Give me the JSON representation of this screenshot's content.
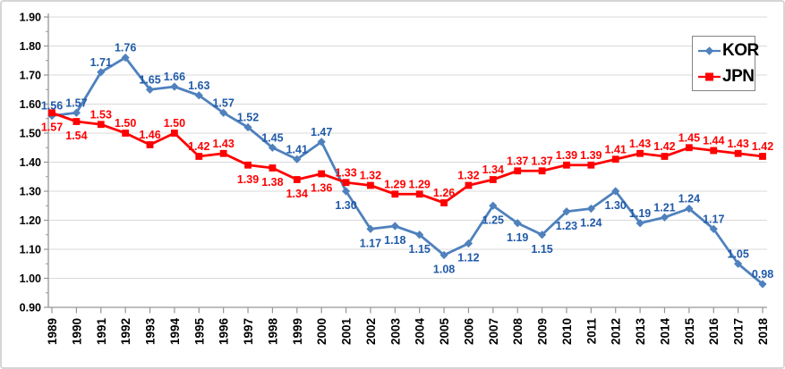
{
  "chart_data": {
    "type": "line",
    "title": "",
    "xlabel": "",
    "ylabel": "",
    "categories": [
      "1989",
      "1990",
      "1991",
      "1992",
      "1993",
      "1994",
      "1995",
      "1996",
      "1997",
      "1998",
      "1999",
      "2000",
      "2001",
      "2002",
      "2003",
      "2004",
      "2005",
      "2006",
      "2007",
      "2008",
      "2009",
      "2010",
      "2011",
      "2012",
      "2013",
      "2014",
      "2015",
      "2016",
      "2017",
      "2018"
    ],
    "series": [
      {
        "name": "KOR",
        "marker": "diamond",
        "line_color": "#4F81BD",
        "label_color": "#1F5AA8",
        "values": [
          1.56,
          1.57,
          1.71,
          1.76,
          1.65,
          1.66,
          1.63,
          1.57,
          1.52,
          1.45,
          1.41,
          1.47,
          1.3,
          1.17,
          1.18,
          1.15,
          1.08,
          1.12,
          1.25,
          1.19,
          1.15,
          1.23,
          1.24,
          1.3,
          1.19,
          1.21,
          1.24,
          1.17,
          1.05,
          0.98
        ],
        "label_pos": [
          "above",
          "above",
          "above",
          "above",
          "above",
          "above",
          "above",
          "above",
          "above",
          "above",
          "above",
          "above",
          "below",
          "below",
          "below",
          "below",
          "below",
          "below",
          "below",
          "below",
          "below",
          "below",
          "below",
          "below",
          "above",
          "above",
          "above",
          "above",
          "above",
          "above"
        ]
      },
      {
        "name": "JPN",
        "marker": "square",
        "line_color": "#FF0000",
        "label_color": "#FF0000",
        "values": [
          1.57,
          1.54,
          1.53,
          1.5,
          1.46,
          1.5,
          1.42,
          1.43,
          1.39,
          1.38,
          1.34,
          1.36,
          1.33,
          1.32,
          1.29,
          1.29,
          1.26,
          1.32,
          1.34,
          1.37,
          1.37,
          1.39,
          1.39,
          1.41,
          1.43,
          1.42,
          1.45,
          1.44,
          1.43,
          1.42
        ],
        "label_pos": [
          "below",
          "below",
          "above",
          "above",
          "above",
          "above",
          "above",
          "above",
          "below",
          "below",
          "below",
          "below",
          "above",
          "above",
          "above",
          "above",
          "above",
          "above",
          "above",
          "above",
          "above",
          "above",
          "above",
          "above",
          "above",
          "above",
          "above",
          "above",
          "above",
          "above"
        ]
      }
    ],
    "yticks": [
      "0.90",
      "1.00",
      "1.10",
      "1.20",
      "1.30",
      "1.40",
      "1.50",
      "1.60",
      "1.70",
      "1.80",
      "1.90"
    ],
    "ylim": [
      0.9,
      1.9
    ],
    "grid": true,
    "legend_position": "top-right",
    "data_labels": true,
    "palette": {
      "gridline": "#D9D9D9",
      "axis": "#969696",
      "tick": "#969696",
      "tick_text": "#000000",
      "background": "#FFFFFF",
      "frame_border": "#D6D6D6",
      "legend_border": "#848484"
    }
  }
}
